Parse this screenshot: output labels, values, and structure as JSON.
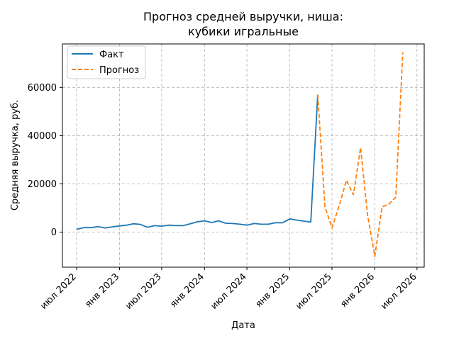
{
  "chart_data": {
    "type": "line",
    "title_line1": "Прогноз средней выручки, ниша:",
    "title_line2": "кубики игральные",
    "xlabel": "Дата",
    "ylabel": "Средняя выручка, руб.",
    "x_ticks": [
      {
        "date": "2022-07-01",
        "label": "июл 2022"
      },
      {
        "date": "2023-01-01",
        "label": "янв 2023"
      },
      {
        "date": "2023-07-01",
        "label": "июл 2023"
      },
      {
        "date": "2024-01-01",
        "label": "янв 2024"
      },
      {
        "date": "2024-07-01",
        "label": "июл 2024"
      },
      {
        "date": "2025-01-01",
        "label": "янв 2025"
      },
      {
        "date": "2025-07-01",
        "label": "июл 2025"
      },
      {
        "date": "2026-01-01",
        "label": "янв 2026"
      },
      {
        "date": "2026-07-01",
        "label": "июл 2026"
      }
    ],
    "y_ticks": [
      0,
      20000,
      40000,
      60000
    ],
    "y_tick_labels": [
      "0",
      "20000",
      "40000",
      "60000"
    ],
    "xlim": [
      "2022-05-01",
      "2026-08-01"
    ],
    "ylim": [
      -14500,
      78000
    ],
    "grid": true,
    "legend_position": "top-left",
    "series": [
      {
        "name": "Факт",
        "color": "#1f77b4",
        "style": "solid",
        "points": [
          {
            "x": "2022-07-01",
            "y": 1200
          },
          {
            "x": "2022-08-01",
            "y": 1900
          },
          {
            "x": "2022-09-01",
            "y": 1900
          },
          {
            "x": "2022-10-01",
            "y": 2300
          },
          {
            "x": "2022-11-01",
            "y": 1700
          },
          {
            "x": "2022-12-01",
            "y": 2200
          },
          {
            "x": "2023-01-01",
            "y": 2600
          },
          {
            "x": "2023-02-01",
            "y": 2900
          },
          {
            "x": "2023-03-01",
            "y": 3500
          },
          {
            "x": "2023-04-01",
            "y": 3200
          },
          {
            "x": "2023-05-01",
            "y": 2000
          },
          {
            "x": "2023-06-01",
            "y": 2700
          },
          {
            "x": "2023-07-01",
            "y": 2500
          },
          {
            "x": "2023-08-01",
            "y": 2900
          },
          {
            "x": "2023-09-01",
            "y": 2700
          },
          {
            "x": "2023-10-01",
            "y": 2700
          },
          {
            "x": "2023-11-01",
            "y": 3500
          },
          {
            "x": "2023-12-01",
            "y": 4300
          },
          {
            "x": "2024-01-01",
            "y": 4700
          },
          {
            "x": "2024-02-01",
            "y": 4000
          },
          {
            "x": "2024-03-01",
            "y": 4700
          },
          {
            "x": "2024-04-01",
            "y": 3700
          },
          {
            "x": "2024-05-01",
            "y": 3600
          },
          {
            "x": "2024-06-01",
            "y": 3300
          },
          {
            "x": "2024-07-01",
            "y": 2900
          },
          {
            "x": "2024-08-01",
            "y": 3600
          },
          {
            "x": "2024-09-01",
            "y": 3300
          },
          {
            "x": "2024-10-01",
            "y": 3300
          },
          {
            "x": "2024-11-01",
            "y": 3900
          },
          {
            "x": "2024-12-01",
            "y": 3900
          },
          {
            "x": "2025-01-01",
            "y": 5500
          },
          {
            "x": "2025-02-01",
            "y": 5000
          },
          {
            "x": "2025-03-01",
            "y": 4600
          },
          {
            "x": "2025-04-01",
            "y": 4200
          },
          {
            "x": "2025-05-01",
            "y": 57000
          }
        ]
      },
      {
        "name": "Прогноз",
        "color": "#ff7f0e",
        "style": "dashed",
        "points": [
          {
            "x": "2025-05-01",
            "y": 57000
          },
          {
            "x": "2025-06-01",
            "y": 10500
          },
          {
            "x": "2025-07-01",
            "y": 1800
          },
          {
            "x": "2025-08-01",
            "y": 11000
          },
          {
            "x": "2025-09-01",
            "y": 21500
          },
          {
            "x": "2025-10-01",
            "y": 15500
          },
          {
            "x": "2025-11-01",
            "y": 35000
          },
          {
            "x": "2025-12-01",
            "y": 7000
          },
          {
            "x": "2026-01-01",
            "y": -10000
          },
          {
            "x": "2026-02-01",
            "y": 10500
          },
          {
            "x": "2026-03-01",
            "y": 11500
          },
          {
            "x": "2026-04-01",
            "y": 14500
          },
          {
            "x": "2026-05-01",
            "y": 74500
          }
        ]
      }
    ]
  }
}
